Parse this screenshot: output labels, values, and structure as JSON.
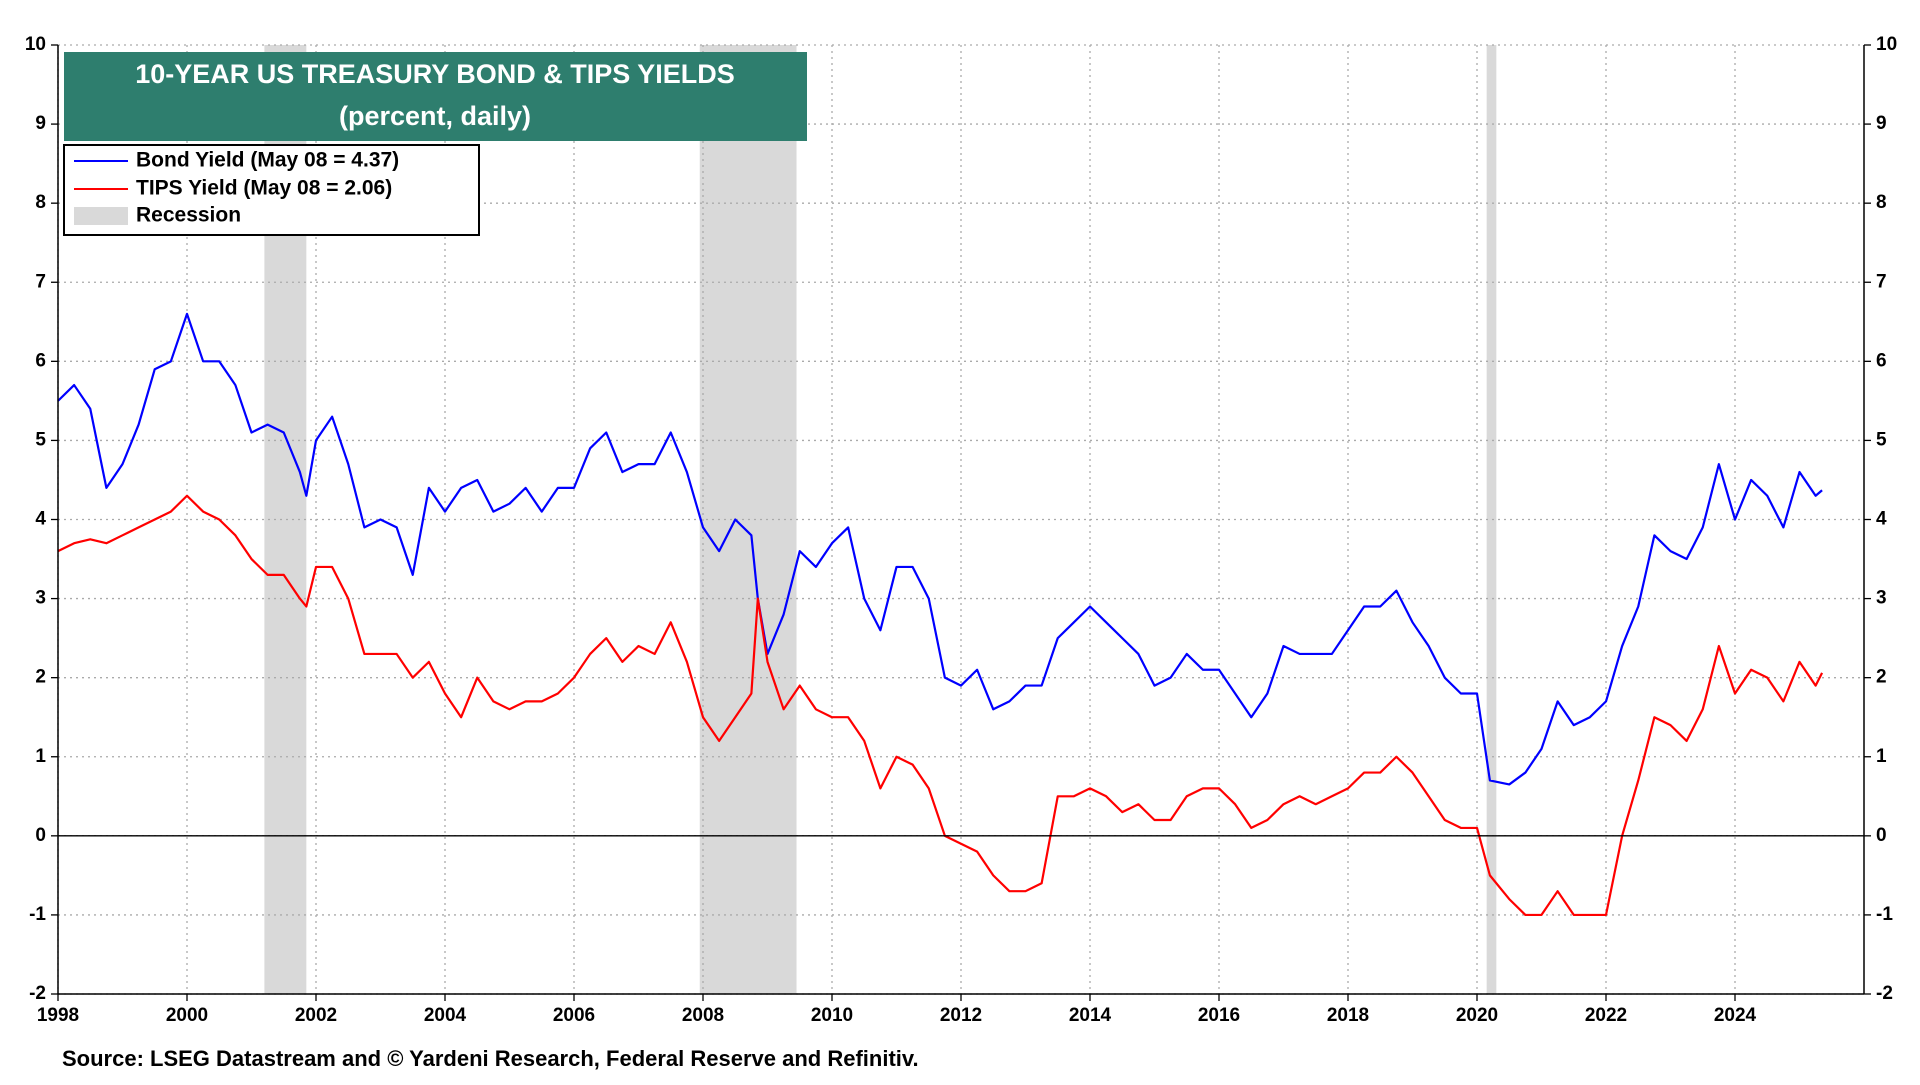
{
  "chart_data": {
    "type": "line",
    "title": "10-YEAR US TREASURY BOND & TIPS YIELDS",
    "subtitle": "(percent, daily)",
    "source": "Source: LSEG Datastream and © Yardeni Research, Federal Reserve and Refinitiv.",
    "x": [
      1998,
      1998.25,
      1998.5,
      1998.75,
      1999,
      1999.25,
      1999.5,
      1999.75,
      2000,
      2000.25,
      2000.5,
      2000.75,
      2001,
      2001.25,
      2001.5,
      2001.75,
      2001.85,
      2002,
      2002.25,
      2002.5,
      2002.75,
      2003,
      2003.25,
      2003.5,
      2003.75,
      2004,
      2004.25,
      2004.5,
      2004.75,
      2005,
      2005.25,
      2005.5,
      2005.75,
      2006,
      2006.25,
      2006.5,
      2006.75,
      2007,
      2007.25,
      2007.5,
      2007.75,
      2008,
      2008.25,
      2008.5,
      2008.75,
      2008.85,
      2009,
      2009.25,
      2009.5,
      2009.75,
      2010,
      2010.25,
      2010.5,
      2010.75,
      2011,
      2011.25,
      2011.5,
      2011.75,
      2012,
      2012.25,
      2012.5,
      2012.75,
      2013,
      2013.25,
      2013.5,
      2013.75,
      2014,
      2014.25,
      2014.5,
      2014.75,
      2015,
      2015.25,
      2015.5,
      2015.75,
      2016,
      2016.25,
      2016.5,
      2016.75,
      2017,
      2017.25,
      2017.5,
      2017.75,
      2018,
      2018.25,
      2018.5,
      2018.75,
      2019,
      2019.25,
      2019.5,
      2019.75,
      2020,
      2020.2,
      2020.5,
      2020.75,
      2021,
      2021.25,
      2021.5,
      2021.75,
      2022,
      2022.25,
      2022.5,
      2022.75,
      2023,
      2023.25,
      2023.5,
      2023.75,
      2024,
      2024.25,
      2024.5,
      2024.75,
      2025,
      2025.25,
      2025.35
    ],
    "series": [
      {
        "name": "Bond Yield (May 08 = 4.37)",
        "color": "#0000ff",
        "values": [
          5.5,
          5.7,
          5.4,
          4.4,
          4.7,
          5.2,
          5.9,
          6.0,
          6.6,
          6.0,
          6.0,
          5.7,
          5.1,
          5.2,
          5.1,
          4.6,
          4.3,
          5.0,
          5.3,
          4.7,
          3.9,
          4.0,
          3.9,
          3.3,
          4.4,
          4.1,
          4.4,
          4.5,
          4.1,
          4.2,
          4.4,
          4.1,
          4.4,
          4.4,
          4.9,
          5.1,
          4.6,
          4.7,
          4.7,
          5.1,
          4.6,
          3.9,
          3.6,
          4.0,
          3.8,
          3.0,
          2.3,
          2.8,
          3.6,
          3.4,
          3.7,
          3.9,
          3.0,
          2.6,
          3.4,
          3.4,
          3.0,
          2.0,
          1.9,
          2.1,
          1.6,
          1.7,
          1.9,
          1.9,
          2.5,
          2.7,
          2.9,
          2.7,
          2.5,
          2.3,
          1.9,
          2.0,
          2.3,
          2.1,
          2.1,
          1.8,
          1.5,
          1.8,
          2.4,
          2.3,
          2.3,
          2.3,
          2.6,
          2.9,
          2.9,
          3.1,
          2.7,
          2.4,
          2.0,
          1.8,
          1.8,
          0.7,
          0.65,
          0.8,
          1.1,
          1.7,
          1.4,
          1.5,
          1.7,
          2.4,
          2.9,
          3.8,
          3.6,
          3.5,
          3.9,
          4.7,
          4.0,
          4.5,
          4.3,
          3.9,
          4.6,
          4.3,
          4.37
        ]
      },
      {
        "name": "TIPS Yield (May 08 = 2.06)",
        "color": "#ff0000",
        "values": [
          3.6,
          3.7,
          3.75,
          3.7,
          3.8,
          3.9,
          4.0,
          4.1,
          4.3,
          4.1,
          4.0,
          3.8,
          3.5,
          3.3,
          3.3,
          3.0,
          2.9,
          3.4,
          3.4,
          3.0,
          2.3,
          2.3,
          2.3,
          2.0,
          2.2,
          1.8,
          1.5,
          2.0,
          1.7,
          1.6,
          1.7,
          1.7,
          1.8,
          2.0,
          2.3,
          2.5,
          2.2,
          2.4,
          2.3,
          2.7,
          2.2,
          1.5,
          1.2,
          1.5,
          1.8,
          3.0,
          2.2,
          1.6,
          1.9,
          1.6,
          1.5,
          1.5,
          1.2,
          0.6,
          1.0,
          0.9,
          0.6,
          0.0,
          -0.1,
          -0.2,
          -0.5,
          -0.7,
          -0.7,
          -0.6,
          0.5,
          0.5,
          0.6,
          0.5,
          0.3,
          0.4,
          0.2,
          0.2,
          0.5,
          0.6,
          0.6,
          0.4,
          0.1,
          0.2,
          0.4,
          0.5,
          0.4,
          0.5,
          0.6,
          0.8,
          0.8,
          1.0,
          0.8,
          0.5,
          0.2,
          0.1,
          0.1,
          -0.5,
          -0.8,
          -1.0,
          -1.0,
          -0.7,
          -1.0,
          -1.0,
          -1.0,
          0.0,
          0.7,
          1.5,
          1.4,
          1.2,
          1.6,
          2.4,
          1.8,
          2.1,
          2.0,
          1.7,
          2.2,
          1.9,
          2.06
        ]
      }
    ],
    "recessions": {
      "name": "Recession",
      "color": "#d9d9d9",
      "spans": [
        [
          2001.2,
          2001.85
        ],
        [
          2007.95,
          2009.45
        ],
        [
          2020.15,
          2020.3
        ]
      ]
    },
    "xlim": [
      1998,
      2026
    ],
    "xticks": [
      1998,
      2000,
      2002,
      2004,
      2006,
      2008,
      2010,
      2012,
      2014,
      2016,
      2018,
      2020,
      2022,
      2024
    ],
    "ylim": [
      -2,
      10
    ],
    "yticks": [
      -2,
      -1,
      0,
      1,
      2,
      3,
      4,
      5,
      6,
      7,
      8,
      9,
      10
    ],
    "grid": true,
    "zero_line": true,
    "legend": "top-left"
  }
}
